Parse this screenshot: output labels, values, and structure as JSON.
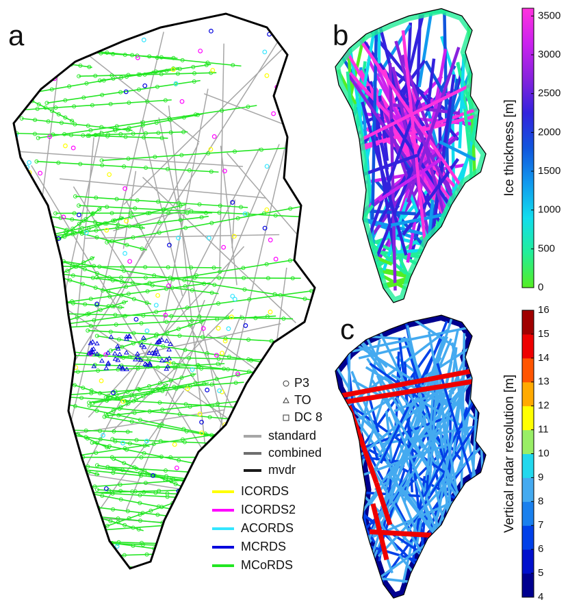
{
  "panels": {
    "a": {
      "label": "a",
      "legend": {
        "platforms": [
          {
            "label": "P3",
            "marker": "circle"
          },
          {
            "label": "TO",
            "marker": "triangle"
          },
          {
            "label": "DC 8",
            "marker": "square"
          }
        ],
        "processing": [
          {
            "label": "standard",
            "color": "#a6a6a6"
          },
          {
            "label": "combined",
            "color": "#6e6e6e"
          },
          {
            "label": "mvdr",
            "color": "#1a1a1a"
          }
        ],
        "systems": [
          {
            "label": "ICORDS",
            "color": "#ffff00"
          },
          {
            "label": "ICORDS2",
            "color": "#ff00ff"
          },
          {
            "label": "ACORDS",
            "color": "#33e6ff"
          },
          {
            "label": "MCRDS",
            "color": "#0000dd"
          },
          {
            "label": "MCoRDS",
            "color": "#22e622"
          }
        ]
      }
    },
    "b": {
      "label": "b",
      "colorbar": {
        "title": "Ice thickness [m]",
        "lim": [
          0,
          3600
        ],
        "ticks": [
          0,
          500,
          1000,
          1500,
          2000,
          2500,
          3000,
          3500
        ],
        "colors": [
          "#55ee22",
          "#22ee99",
          "#11ddee",
          "#1199ee",
          "#1155dd",
          "#3322dd",
          "#8822dd",
          "#cc22ee",
          "#ff33dd"
        ]
      }
    },
    "c": {
      "label": "c",
      "colorbar": {
        "title": "Vertical radar resolution [m]",
        "lim": [
          4,
          16
        ],
        "ticks": [
          4,
          5,
          6,
          7,
          8,
          9,
          10,
          11,
          12,
          13,
          14,
          15,
          16
        ],
        "colors": [
          "#00008f",
          "#0010cc",
          "#0040e8",
          "#1a80ee",
          "#44aaf0",
          "#22d8ee",
          "#99ee66",
          "#ffff00",
          "#ffaa00",
          "#ff5500",
          "#ee0000",
          "#a00000"
        ]
      }
    }
  }
}
